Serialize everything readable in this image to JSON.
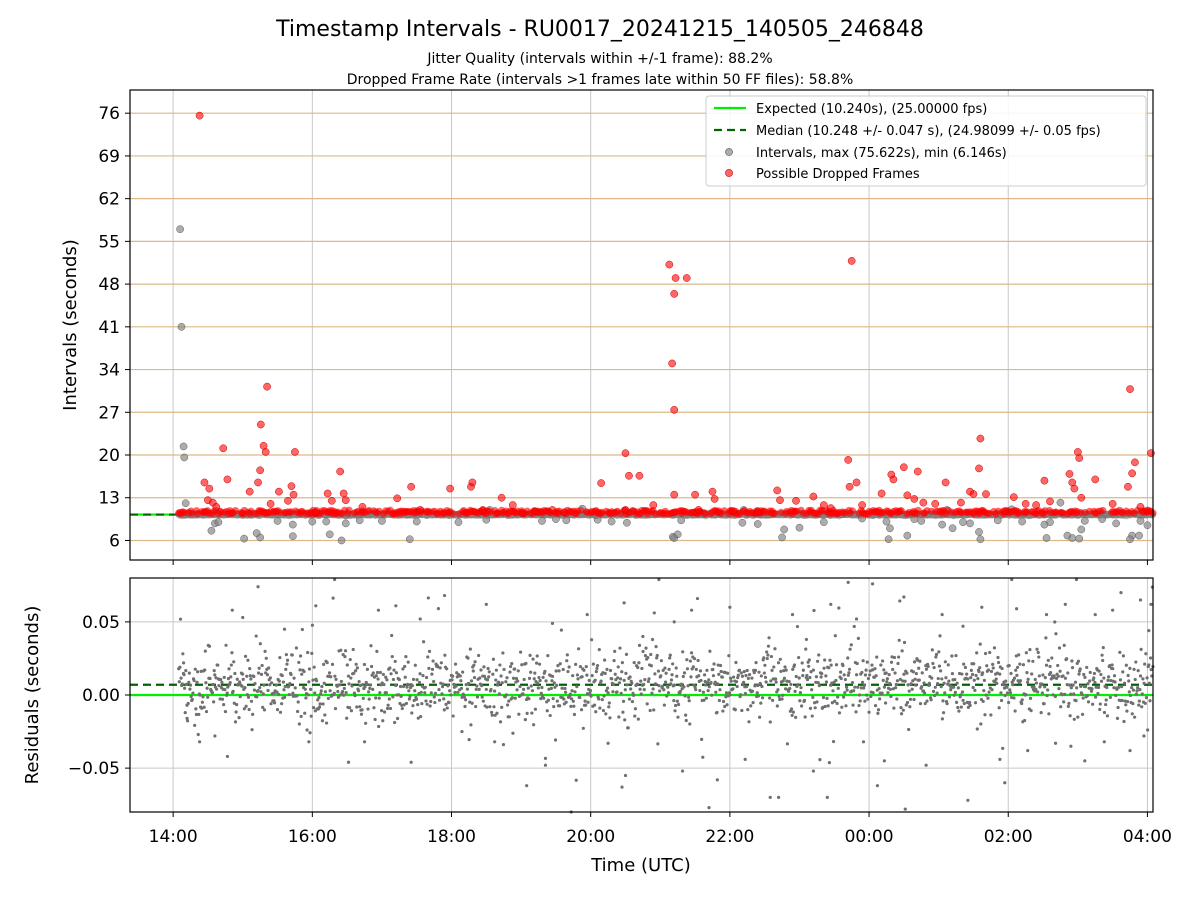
{
  "chart_data": {
    "type": "scatter",
    "title": "Timestamp Intervals - RU0017_20241215_140505_246848",
    "subtitles": [
      "Jitter Quality (intervals within +/-1 frame): 88.2%",
      "Dropped Frame Rate (intervals >1 frames late within 50 FF files): 58.8%"
    ],
    "xlabel": "Time (UTC)",
    "x_range_hours": [
      13.38,
      28.08
    ],
    "x_ticks": [
      {
        "h": 14,
        "label": "14:00"
      },
      {
        "h": 16,
        "label": "16:00"
      },
      {
        "h": 18,
        "label": "18:00"
      },
      {
        "h": 20,
        "label": "20:00"
      },
      {
        "h": 22,
        "label": "22:00"
      },
      {
        "h": 24,
        "label": "00:00"
      },
      {
        "h": 26,
        "label": "02:00"
      },
      {
        "h": 28,
        "label": "04:00"
      }
    ],
    "top_panel": {
      "ylabel": "Intervals (seconds)",
      "ylim": [
        2.8,
        79.8
      ],
      "y_ticks": [
        6,
        13,
        20,
        27,
        34,
        41,
        48,
        55,
        62,
        69,
        76
      ],
      "grid": true,
      "legend_position": "top-right",
      "legend": [
        "Expected (10.240s), (25.00000 fps)",
        "Median (10.248 +/- 0.047 s), (24.98099 +/- 0.05 fps)",
        "Intervals, max (75.622s), min (6.146s)",
        "Possible Dropped Frames"
      ],
      "expected": 10.24,
      "median": 10.248,
      "dropped_points": [
        [
          14.38,
          75.6
        ],
        [
          14.45,
          15.5
        ],
        [
          14.52,
          14.5
        ],
        [
          14.5,
          12.6
        ],
        [
          14.57,
          12.2
        ],
        [
          14.62,
          11.5
        ],
        [
          14.72,
          21.1
        ],
        [
          14.78,
          16.0
        ],
        [
          15.1,
          14.0
        ],
        [
          15.22,
          15.5
        ],
        [
          15.25,
          17.5
        ],
        [
          15.26,
          25.0
        ],
        [
          15.3,
          21.5
        ],
        [
          15.33,
          20.5
        ],
        [
          15.35,
          31.2
        ],
        [
          15.4,
          12.0
        ],
        [
          15.52,
          14.0
        ],
        [
          15.65,
          12.5
        ],
        [
          15.7,
          14.9
        ],
        [
          15.75,
          20.5
        ],
        [
          15.73,
          13.5
        ],
        [
          16.05,
          10.6
        ],
        [
          16.22,
          13.7
        ],
        [
          16.28,
          12.5
        ],
        [
          16.4,
          17.3
        ],
        [
          16.45,
          13.7
        ],
        [
          16.48,
          12.6
        ],
        [
          16.72,
          11.5
        ],
        [
          17.22,
          12.9
        ],
        [
          17.42,
          14.8
        ],
        [
          17.55,
          11.0
        ],
        [
          17.98,
          14.5
        ],
        [
          18.28,
          14.8
        ],
        [
          18.3,
          15.5
        ],
        [
          18.45,
          11.0
        ],
        [
          18.72,
          13.0
        ],
        [
          18.88,
          11.8
        ],
        [
          19.02,
          10.5
        ],
        [
          19.2,
          10.8
        ],
        [
          19.45,
          11.0
        ],
        [
          19.62,
          10.6
        ],
        [
          20.15,
          15.4
        ],
        [
          20.5,
          20.3
        ],
        [
          20.55,
          16.6
        ],
        [
          20.7,
          16.6
        ],
        [
          20.5,
          11.0
        ],
        [
          20.9,
          11.8
        ],
        [
          21.13,
          51.2
        ],
        [
          21.2,
          46.4
        ],
        [
          21.22,
          49.0
        ],
        [
          21.17,
          35.0
        ],
        [
          21.2,
          27.4
        ],
        [
          21.2,
          13.5
        ],
        [
          21.38,
          49.0
        ],
        [
          21.5,
          13.5
        ],
        [
          21.55,
          11.0
        ],
        [
          21.75,
          14.0
        ],
        [
          21.78,
          12.8
        ],
        [
          22.05,
          10.8
        ],
        [
          22.4,
          10.6
        ],
        [
          22.68,
          14.2
        ],
        [
          22.72,
          12.6
        ],
        [
          22.95,
          12.5
        ],
        [
          23.2,
          13.2
        ],
        [
          23.35,
          11.8
        ],
        [
          23.45,
          11.3
        ],
        [
          23.7,
          19.2
        ],
        [
          23.75,
          51.8
        ],
        [
          23.72,
          14.8
        ],
        [
          23.82,
          15.5
        ],
        [
          23.9,
          11.8
        ],
        [
          24.18,
          13.7
        ],
        [
          24.32,
          16.8
        ],
        [
          24.35,
          16.0
        ],
        [
          24.5,
          18.0
        ],
        [
          24.55,
          13.4
        ],
        [
          24.65,
          12.8
        ],
        [
          24.7,
          17.3
        ],
        [
          24.78,
          12.2
        ],
        [
          24.95,
          12.0
        ],
        [
          25.1,
          15.5
        ],
        [
          25.32,
          12.2
        ],
        [
          25.45,
          14.0
        ],
        [
          25.5,
          13.6
        ],
        [
          25.58,
          17.8
        ],
        [
          25.6,
          22.7
        ],
        [
          25.68,
          13.6
        ],
        [
          25.95,
          10.8
        ],
        [
          26.08,
          13.1
        ],
        [
          26.25,
          12.0
        ],
        [
          26.4,
          11.8
        ],
        [
          26.52,
          15.8
        ],
        [
          26.6,
          12.4
        ],
        [
          26.88,
          16.9
        ],
        [
          26.92,
          15.5
        ],
        [
          26.95,
          14.5
        ],
        [
          27.0,
          20.5
        ],
        [
          27.02,
          19.5
        ],
        [
          27.05,
          13.0
        ],
        [
          27.25,
          16.0
        ],
        [
          27.5,
          12.0
        ],
        [
          27.72,
          14.8
        ],
        [
          27.78,
          17.0
        ],
        [
          27.82,
          18.8
        ],
        [
          27.75,
          30.8
        ],
        [
          27.9,
          11.5
        ],
        [
          28.05,
          20.3
        ],
        [
          28.0,
          10.9
        ]
      ],
      "interval_outliers": [
        [
          14.1,
          57.0
        ],
        [
          14.12,
          41.0
        ],
        [
          14.15,
          21.4
        ],
        [
          14.16,
          19.6
        ],
        [
          14.18,
          12.1
        ],
        [
          14.22,
          10.5
        ],
        [
          14.55,
          7.6
        ],
        [
          14.6,
          8.8
        ],
        [
          14.65,
          9.0
        ],
        [
          15.02,
          6.3
        ],
        [
          15.1,
          10.4
        ],
        [
          15.25,
          6.5
        ],
        [
          15.2,
          7.2
        ],
        [
          15.5,
          9.2
        ],
        [
          15.72,
          6.7
        ],
        [
          15.72,
          8.6
        ],
        [
          16.0,
          9.1
        ],
        [
          16.2,
          9.1
        ],
        [
          16.25,
          7.0
        ],
        [
          16.42,
          6.0
        ],
        [
          16.48,
          8.8
        ],
        [
          16.48,
          10.1
        ],
        [
          16.68,
          9.3
        ],
        [
          17.0,
          9.2
        ],
        [
          17.4,
          6.2
        ],
        [
          17.5,
          9.1
        ],
        [
          18.1,
          9.0
        ],
        [
          18.5,
          9.4
        ],
        [
          18.55,
          11.0
        ],
        [
          19.3,
          9.2
        ],
        [
          19.5,
          9.5
        ],
        [
          19.65,
          9.3
        ],
        [
          19.88,
          11.2
        ],
        [
          20.1,
          9.4
        ],
        [
          20.3,
          9.1
        ],
        [
          20.52,
          8.9
        ],
        [
          20.6,
          10.8
        ],
        [
          21.18,
          6.6
        ],
        [
          21.2,
          6.4
        ],
        [
          21.25,
          7.0
        ],
        [
          21.3,
          9.3
        ],
        [
          21.62,
          10.4
        ],
        [
          22.2,
          11.0
        ],
        [
          22.18,
          8.9
        ],
        [
          22.4,
          8.7
        ],
        [
          22.75,
          6.5
        ],
        [
          22.78,
          7.8
        ],
        [
          23.0,
          8.1
        ],
        [
          23.35,
          9.0
        ],
        [
          23.62,
          10.3
        ],
        [
          23.9,
          9.6
        ],
        [
          24.25,
          9.1
        ],
        [
          24.28,
          6.2
        ],
        [
          24.3,
          8.0
        ],
        [
          24.55,
          6.8
        ],
        [
          24.65,
          9.5
        ],
        [
          24.75,
          9.2
        ],
        [
          25.05,
          8.6
        ],
        [
          25.12,
          11.0
        ],
        [
          25.2,
          8.0
        ],
        [
          25.35,
          9.0
        ],
        [
          25.45,
          8.8
        ],
        [
          25.6,
          6.2
        ],
        [
          25.58,
          7.4
        ],
        [
          25.85,
          9.3
        ],
        [
          26.05,
          11.1
        ],
        [
          26.2,
          9.1
        ],
        [
          26.52,
          8.6
        ],
        [
          26.55,
          6.4
        ],
        [
          26.6,
          9.0
        ],
        [
          26.75,
          12.2
        ],
        [
          26.85,
          6.8
        ],
        [
          26.92,
          6.4
        ],
        [
          27.02,
          6.3
        ],
        [
          27.05,
          7.8
        ],
        [
          27.1,
          9.2
        ],
        [
          27.35,
          9.5
        ],
        [
          27.55,
          8.8
        ],
        [
          27.78,
          6.8
        ],
        [
          27.75,
          6.2
        ],
        [
          27.88,
          6.8
        ],
        [
          27.9,
          9.2
        ],
        [
          28.0,
          8.5
        ]
      ]
    },
    "bottom_panel": {
      "ylabel": "Residuals (seconds)",
      "ylim": [
        -0.08,
        0.08
      ],
      "y_ticks": [
        {
          "v": 0.05,
          "label": "0.05"
        },
        {
          "v": 0.0,
          "label": "0.00"
        },
        {
          "v": -0.05,
          "label": "−0.05"
        }
      ],
      "grid": true,
      "expected_residual": 0.0,
      "median_residual": 0.007,
      "residual_points": [
        [
          14.2,
          -0.016
        ],
        [
          14.15,
          0.022
        ],
        [
          14.38,
          -0.032
        ],
        [
          14.6,
          -0.028
        ],
        [
          14.78,
          -0.042
        ],
        [
          14.85,
          0.058
        ],
        [
          15.0,
          0.053
        ],
        [
          15.22,
          0.074
        ],
        [
          15.6,
          0.045
        ],
        [
          15.95,
          -0.032
        ],
        [
          16.05,
          0.061
        ],
        [
          16.32,
          0.079
        ],
        [
          16.52,
          -0.046
        ],
        [
          16.75,
          -0.032
        ],
        [
          16.95,
          0.058
        ],
        [
          17.2,
          0.061
        ],
        [
          17.42,
          -0.046
        ],
        [
          17.55,
          0.052
        ],
        [
          17.9,
          0.068
        ],
        [
          18.15,
          -0.025
        ],
        [
          18.5,
          0.062
        ],
        [
          18.62,
          -0.032
        ],
        [
          19.08,
          -0.062
        ],
        [
          19.35,
          -0.048
        ],
        [
          19.45,
          0.049
        ],
        [
          19.72,
          -0.08
        ],
        [
          19.95,
          0.055
        ],
        [
          20.25,
          -0.033
        ],
        [
          20.45,
          -0.063
        ],
        [
          20.48,
          0.063
        ],
        [
          20.5,
          -0.055
        ],
        [
          20.75,
          0.04
        ],
        [
          20.98,
          0.079
        ],
        [
          21.2,
          0.05
        ],
        [
          21.32,
          -0.052
        ],
        [
          21.45,
          0.058
        ],
        [
          21.7,
          -0.077
        ],
        [
          21.82,
          -0.058
        ],
        [
          22.0,
          0.06
        ],
        [
          22.22,
          -0.044
        ],
        [
          22.58,
          -0.07
        ],
        [
          22.7,
          -0.07
        ],
        [
          22.9,
          0.055
        ],
        [
          23.1,
          0.038
        ],
        [
          23.2,
          -0.052
        ],
        [
          23.4,
          -0.07
        ],
        [
          23.45,
          0.062
        ],
        [
          23.7,
          0.077
        ],
        [
          23.82,
          0.052
        ],
        [
          23.92,
          -0.032
        ],
        [
          24.05,
          0.076
        ],
        [
          24.12,
          -0.062
        ],
        [
          24.22,
          -0.045
        ],
        [
          24.5,
          0.067
        ],
        [
          24.52,
          -0.078
        ],
        [
          24.82,
          -0.048
        ],
        [
          25.05,
          0.055
        ],
        [
          25.35,
          0.047
        ],
        [
          25.42,
          -0.072
        ],
        [
          25.62,
          0.06
        ],
        [
          25.88,
          -0.044
        ],
        [
          25.95,
          -0.06
        ],
        [
          26.05,
          0.079
        ],
        [
          26.12,
          0.059
        ],
        [
          26.28,
          -0.038
        ],
        [
          26.55,
          0.055
        ],
        [
          26.68,
          -0.033
        ],
        [
          26.82,
          0.062
        ],
        [
          26.9,
          -0.035
        ],
        [
          26.98,
          0.079
        ],
        [
          27.1,
          -0.045
        ],
        [
          27.25,
          0.055
        ],
        [
          27.38,
          -0.032
        ],
        [
          27.5,
          0.058
        ],
        [
          27.62,
          0.07
        ],
        [
          27.75,
          -0.038
        ],
        [
          27.9,
          0.065
        ],
        [
          27.95,
          -0.028
        ],
        [
          28.05,
          0.062
        ],
        [
          28.02,
          0.044
        ]
      ]
    }
  }
}
